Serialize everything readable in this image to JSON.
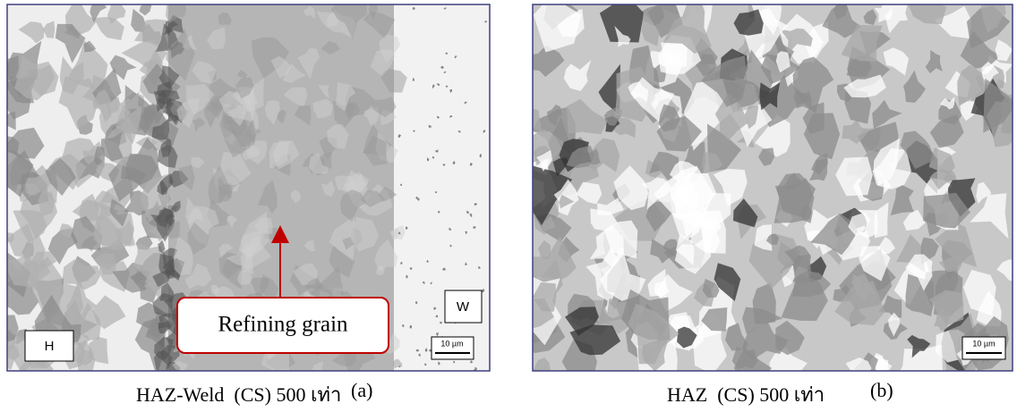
{
  "panels": [
    {
      "labels": {
        "left": "H",
        "right": "W"
      },
      "annotation": "Refining grain",
      "scale_bar": "10 µm",
      "caption": "HAZ-Weld  (CS) 500 เท่า",
      "tag": "(a)"
    },
    {
      "scale_bar": "10 µm",
      "caption": "HAZ  (CS) 500 เท่า",
      "tag": "(b)"
    }
  ]
}
